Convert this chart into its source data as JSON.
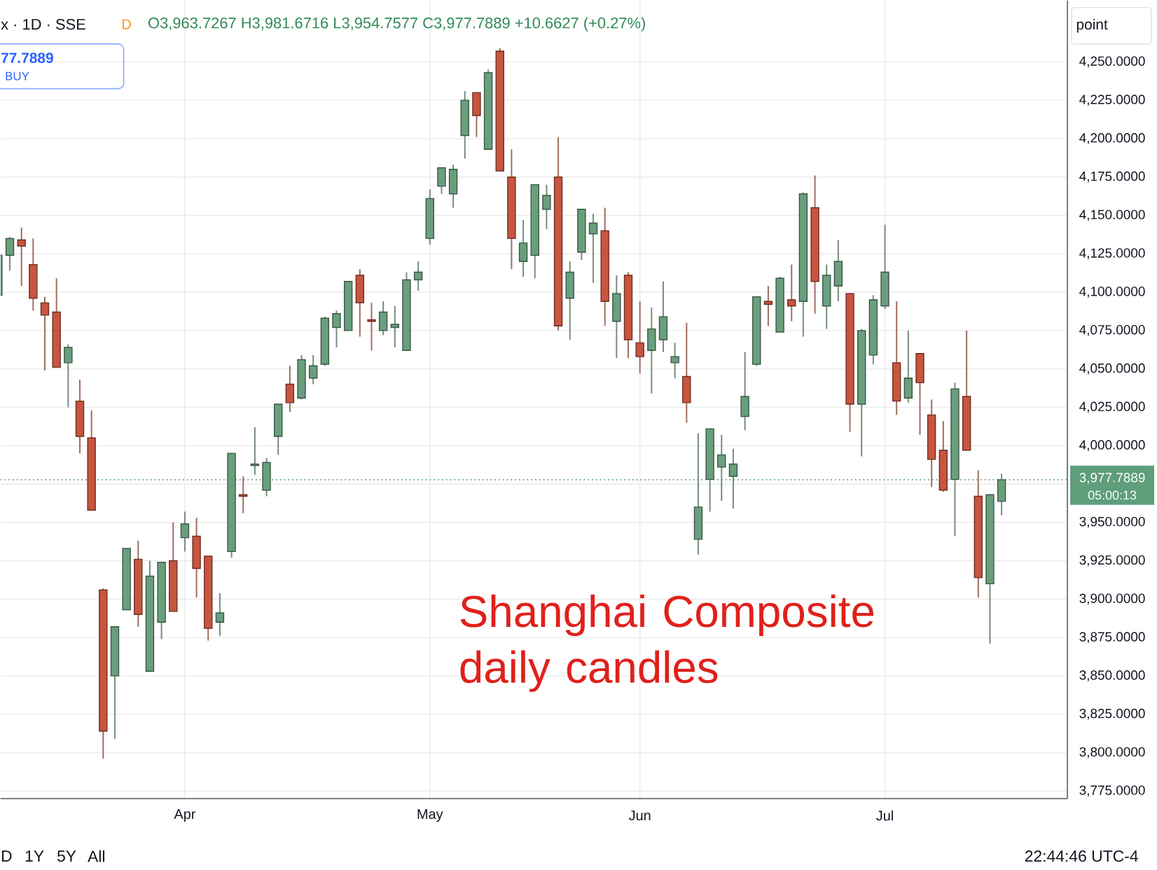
{
  "chart_data": {
    "type": "candlestick",
    "title": "Shanghai Composite daily candles",
    "subtitle": "O3,963.7267 H3,981.6716 L3,954.7577 C3,977.7889 +10.6627 (+0.27%)",
    "categories": [
      null,
      null,
      null,
      null,
      null,
      null,
      null,
      null,
      null,
      null,
      null,
      null,
      null,
      null,
      null,
      null,
      "Apr",
      null,
      null,
      null,
      null,
      null,
      null,
      null,
      null,
      null,
      null,
      null,
      null,
      null,
      null,
      null,
      null,
      null,
      null,
      null,
      null,
      "May",
      null,
      null,
      null,
      null,
      null,
      null,
      null,
      null,
      null,
      null,
      null,
      null,
      null,
      null,
      null,
      null,
      null,
      "Jun",
      null,
      null,
      null,
      null,
      null,
      null,
      null,
      null,
      null,
      null,
      null,
      null,
      null,
      null,
      null,
      null,
      null,
      null,
      null,
      null,
      "Jul",
      null,
      null,
      null,
      null,
      null,
      null,
      null,
      null,
      null,
      null
    ],
    "ohlc": [
      [
        4098,
        4124,
        4098,
        4124
      ],
      [
        4124,
        4136,
        4114,
        4135
      ],
      [
        4134,
        4142,
        4104,
        4130
      ],
      [
        4118,
        4135,
        4088,
        4096
      ],
      [
        4093,
        4097,
        4049,
        4085
      ],
      [
        4087,
        4109,
        4051,
        4051
      ],
      [
        4054,
        4066,
        4025,
        4064
      ],
      [
        4029,
        4043,
        3995,
        4006
      ],
      [
        4005,
        4023,
        3958,
        3958
      ],
      [
        3906,
        3907,
        3796,
        3814
      ],
      [
        3850,
        3882,
        3809,
        3882
      ],
      [
        3893,
        3933,
        3893,
        3933
      ],
      [
        3926,
        3938,
        3882,
        3890
      ],
      [
        3853,
        3925,
        3853,
        3915
      ],
      [
        3885,
        3924,
        3874,
        3924
      ],
      [
        3925,
        3950,
        3892,
        3892
      ],
      [
        3940,
        3957,
        3931,
        3949
      ],
      [
        3941,
        3953,
        3901,
        3920
      ],
      [
        3928,
        3928,
        3873,
        3881
      ],
      [
        3885,
        3904,
        3876,
        3891
      ],
      [
        3931,
        3995,
        3927,
        3995
      ],
      [
        3968,
        3980,
        3956,
        3967
      ],
      [
        3987,
        4012,
        3981,
        3988
      ],
      [
        3971,
        3992,
        3967,
        3989
      ],
      [
        4006,
        4027,
        3994,
        4027
      ],
      [
        4040,
        4052,
        4022,
        4028
      ],
      [
        4031,
        4059,
        4030,
        4056
      ],
      [
        4044,
        4059,
        4040,
        4052
      ],
      [
        4053,
        4084,
        4052,
        4083
      ],
      [
        4077,
        4088,
        4064,
        4086
      ],
      [
        4075,
        4107,
        4075,
        4107
      ],
      [
        4111,
        4115,
        4071,
        4093
      ],
      [
        4082,
        4093,
        4062,
        4081
      ],
      [
        4075,
        4094,
        4072,
        4087
      ],
      [
        4077,
        4091,
        4064,
        4079
      ],
      [
        4062,
        4113,
        4062,
        4108
      ],
      [
        4108,
        4120,
        4101,
        4113
      ],
      [
        4135,
        4167,
        4131,
        4161
      ],
      [
        4169,
        4181,
        4164,
        4181
      ],
      [
        4164,
        4183,
        4155,
        4180
      ],
      [
        4202,
        4231,
        4187,
        4225
      ],
      [
        4230,
        4230,
        4201,
        4215
      ],
      [
        4193,
        4245,
        4193,
        4243
      ],
      [
        4257,
        4259,
        4179,
        4179
      ],
      [
        4175,
        4193,
        4115,
        4135
      ],
      [
        4120,
        4147,
        4110,
        4132
      ],
      [
        4124,
        4170,
        4109,
        4170
      ],
      [
        4154,
        4170,
        4141,
        4163
      ],
      [
        4175,
        4201,
        4075,
        4078
      ],
      [
        4096,
        4120,
        4069,
        4113
      ],
      [
        4126,
        4154,
        4121,
        4154
      ],
      [
        4138,
        4151,
        4106,
        4145
      ],
      [
        4140,
        4155,
        4078,
        4094
      ],
      [
        4081,
        4111,
        4057,
        4099
      ],
      [
        4111,
        4113,
        4057,
        4069
      ],
      [
        4067,
        4094,
        4047,
        4058
      ],
      [
        4062,
        4090,
        4034,
        4076
      ],
      [
        4069,
        4107,
        4061,
        4084
      ],
      [
        4054,
        4067,
        4044,
        4058
      ],
      [
        4045,
        4080,
        4015,
        4028
      ],
      [
        3939,
        4008,
        3929,
        3960
      ],
      [
        3978,
        4011,
        3957,
        4011
      ],
      [
        3986,
        4007,
        3964,
        3994
      ],
      [
        3980,
        3998,
        3959,
        3988
      ],
      [
        4019,
        4061,
        4010,
        4032
      ],
      [
        4053,
        4097,
        4052,
        4097
      ],
      [
        4094,
        4104,
        4078,
        4092
      ],
      [
        4074,
        4110,
        4074,
        4109
      ],
      [
        4095,
        4118,
        4081,
        4091
      ],
      [
        4094,
        4165,
        4071,
        4164
      ],
      [
        4155,
        4176,
        4086,
        4107
      ],
      [
        4091,
        4118,
        4076,
        4111
      ],
      [
        4104,
        4134,
        4094,
        4120
      ],
      [
        4099,
        4099,
        4009,
        4027
      ],
      [
        4027,
        4076,
        3993,
        4075
      ],
      [
        4059,
        4098,
        4053,
        4095
      ],
      [
        4091,
        4144,
        4089,
        4113
      ],
      [
        4054,
        4094,
        4020,
        4029
      ],
      [
        4031,
        4075,
        4028,
        4044
      ],
      [
        4060,
        4060,
        4007,
        4041
      ],
      [
        4020,
        4030,
        3973,
        3991
      ],
      [
        3997,
        4016,
        3970,
        3971
      ],
      [
        3978,
        4041,
        3941,
        4037
      ],
      [
        4032,
        4075,
        3997,
        3997
      ],
      [
        3967,
        3984,
        3901,
        3914
      ],
      [
        3910,
        3968,
        3871,
        3968
      ],
      [
        3963.7267,
        3981.6716,
        3954.7577,
        3977.7889
      ]
    ],
    "colors": [
      "#6a9f7d",
      "#6a9f7d",
      "#c8553f",
      "#c8553f",
      "#c8553f",
      "#c8553f",
      "#6a9f7d",
      "#c8553f",
      "#c8553f",
      "#c8553f",
      "#6a9f7d",
      "#6a9f7d",
      "#c8553f",
      "#6a9f7d",
      "#6a9f7d",
      "#c8553f",
      "#6a9f7d",
      "#c8553f",
      "#c8553f",
      "#6a9f7d",
      "#6a9f7d",
      "#c8553f",
      "#6a9f7d",
      "#6a9f7d",
      "#6a9f7d",
      "#c8553f",
      "#6a9f7d",
      "#6a9f7d",
      "#6a9f7d",
      "#6a9f7d",
      "#6a9f7d",
      "#c8553f",
      "#c8553f",
      "#6a9f7d",
      "#6a9f7d",
      "#6a9f7d",
      "#6a9f7d",
      "#6a9f7d",
      "#6a9f7d",
      "#6a9f7d",
      "#6a9f7d",
      "#c8553f",
      "#6a9f7d",
      "#c8553f",
      "#c8553f",
      "#6a9f7d",
      "#6a9f7d",
      "#6a9f7d",
      "#c8553f",
      "#6a9f7d",
      "#6a9f7d",
      "#6a9f7d",
      "#c8553f",
      "#6a9f7d",
      "#c8553f",
      "#c8553f",
      "#6a9f7d",
      "#6a9f7d",
      "#6a9f7d",
      "#c8553f",
      "#6a9f7d",
      "#6a9f7d",
      "#6a9f7d",
      "#6a9f7d",
      "#6a9f7d",
      "#6a9f7d",
      "#c8553f",
      "#6a9f7d",
      "#c8553f",
      "#6a9f7d",
      "#c8553f",
      "#6a9f7d",
      "#6a9f7d",
      "#c8553f",
      "#6a9f7d",
      "#6a9f7d",
      "#6a9f7d",
      "#c8553f",
      "#6a9f7d",
      "#c8553f",
      "#c8553f",
      "#c8553f",
      "#6a9f7d",
      "#c8553f",
      "#c8553f",
      "#6a9f7d",
      "#6a9f7d"
    ],
    "ylim": [
      3770,
      4290
    ],
    "yticks": [
      {
        "value": 3775,
        "label": "3,775.0000"
      },
      {
        "value": 3800,
        "label": "3,800.0000"
      },
      {
        "value": 3825,
        "label": "3,825.0000"
      },
      {
        "value": 3850,
        "label": "3,850.0000"
      },
      {
        "value": 3875,
        "label": "3,875.0000"
      },
      {
        "value": 3900,
        "label": "3,900.0000"
      },
      {
        "value": 3925,
        "label": "3,925.0000"
      },
      {
        "value": 3950,
        "label": "3,950.0000"
      },
      {
        "value": 3975,
        "label": null
      },
      {
        "value": 4000,
        "label": "4,000.0000"
      },
      {
        "value": 4025,
        "label": "4,025.0000"
      },
      {
        "value": 4050,
        "label": "4,050.0000"
      },
      {
        "value": 4075,
        "label": "4,075.0000"
      },
      {
        "value": 4100,
        "label": "4,100.0000"
      },
      {
        "value": 4125,
        "label": "4,125.0000"
      },
      {
        "value": 4150,
        "label": "4,150.0000"
      },
      {
        "value": 4175,
        "label": "4,175.0000"
      },
      {
        "value": 4200,
        "label": "4,200.0000"
      },
      {
        "value": 4225,
        "label": "4,225.0000"
      },
      {
        "value": 4250,
        "label": "4,250.0000"
      }
    ],
    "grid": true,
    "ref_lines": [
      {
        "axis": "y",
        "value": 3977.7889,
        "label": "3,977.7889",
        "color": "#5e9e7a",
        "line_style": "dotted"
      }
    ],
    "annotations": [
      "x · 1D · SSE",
      "D",
      "77.7889",
      "BUY",
      "point",
      "05:00:13",
      "D",
      "1Y",
      "5Y",
      "All",
      "22:44:46 UTC-4"
    ]
  }
}
